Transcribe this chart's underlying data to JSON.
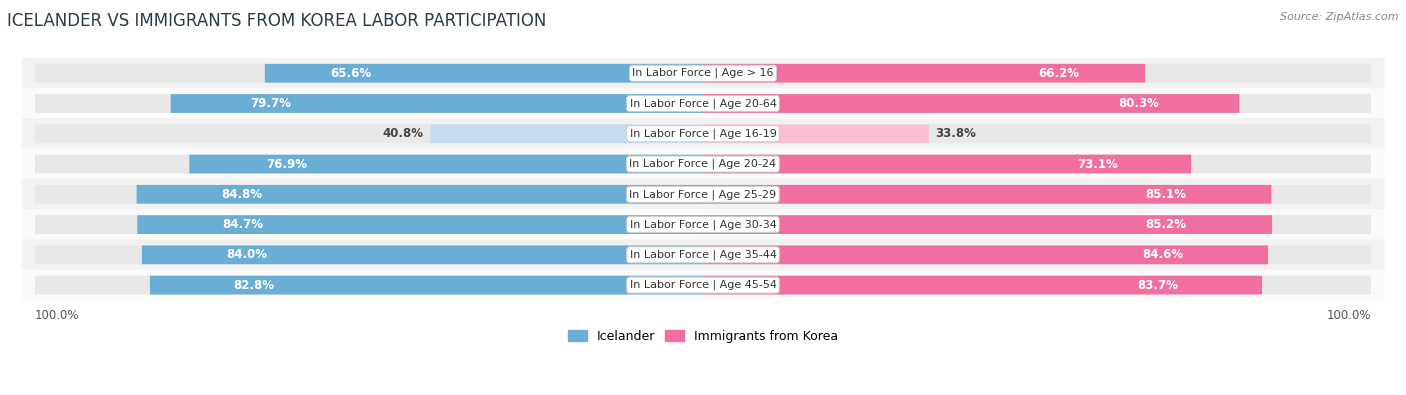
{
  "title": "ICELANDER VS IMMIGRANTS FROM KOREA LABOR PARTICIPATION",
  "source": "Source: ZipAtlas.com",
  "categories": [
    "In Labor Force | Age > 16",
    "In Labor Force | Age 20-64",
    "In Labor Force | Age 16-19",
    "In Labor Force | Age 20-24",
    "In Labor Force | Age 25-29",
    "In Labor Force | Age 30-34",
    "In Labor Force | Age 35-44",
    "In Labor Force | Age 45-54"
  ],
  "icelander_values": [
    65.6,
    79.7,
    40.8,
    76.9,
    84.8,
    84.7,
    84.0,
    82.8
  ],
  "korea_values": [
    66.2,
    80.3,
    33.8,
    73.1,
    85.1,
    85.2,
    84.6,
    83.7
  ],
  "icelander_color": "#6aaed6",
  "korea_color": "#f06fa0",
  "icelander_light_color": "#c5dcf0",
  "korea_light_color": "#f9c0d5",
  "pill_bg_color": "#e8e8e8",
  "row_bg_even": "#f2f2f2",
  "row_bg_odd": "#fafafa",
  "background_color": "#ffffff",
  "legend_icelander": "Icelander",
  "legend_korea": "Immigrants from Korea",
  "value_fontsize": 8.5,
  "cat_fontsize": 8.0,
  "title_fontsize": 12,
  "source_fontsize": 8,
  "legend_fontsize": 9
}
